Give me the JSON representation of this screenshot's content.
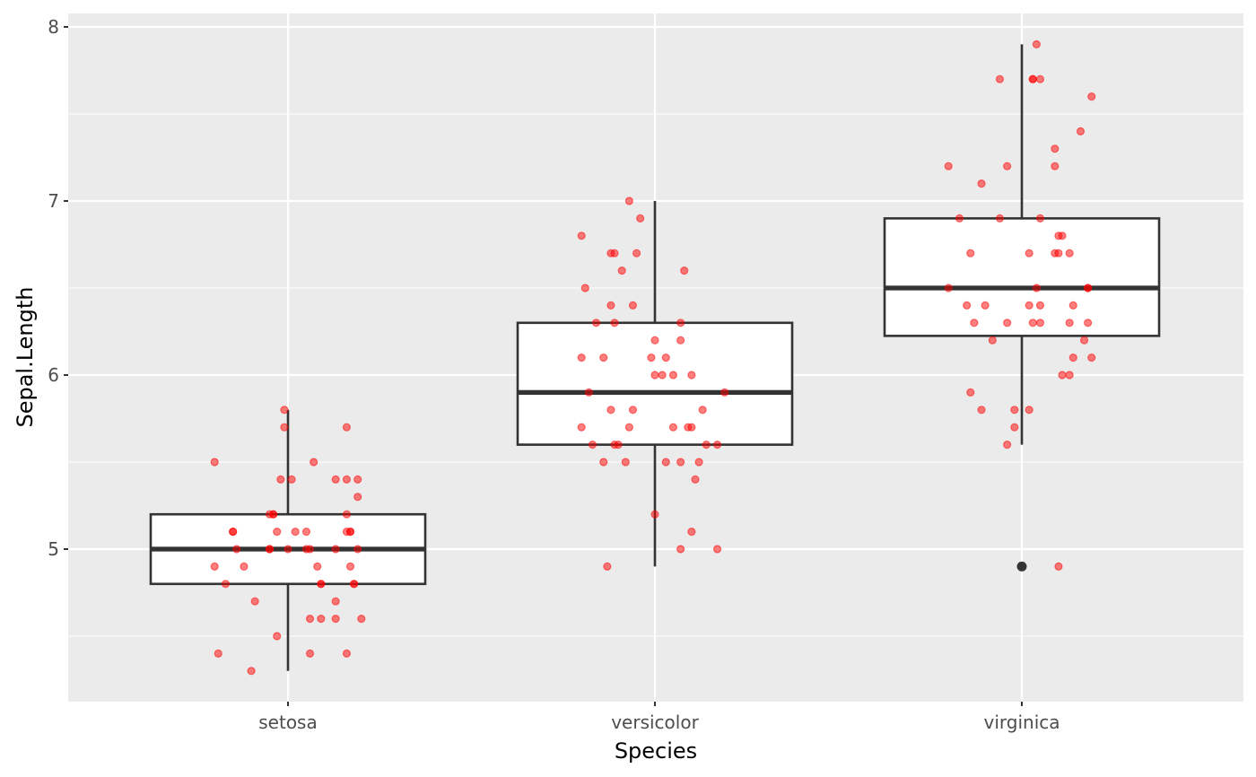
{
  "chart_data": {
    "type": "boxplot",
    "title": "",
    "xlabel": "Species",
    "ylabel": "Sepal.Length",
    "categories": [
      "setosa",
      "versicolor",
      "virginica"
    ],
    "ylim": [
      4.22,
      8.08
    ],
    "y_ticks": [
      5,
      6,
      7,
      8
    ],
    "y_tick_labels": [
      "5",
      "6",
      "7",
      "8"
    ],
    "y_minor_ticks": [
      4.5,
      5.5,
      6.5,
      7.5
    ],
    "grid": true,
    "legend": "none",
    "colors": {
      "panel": "#ebebeb",
      "grid": "#ffffff",
      "box_fill": "#ffffff",
      "box_line": "#333333",
      "points": "#ff0000",
      "outlier": "#333333"
    },
    "boxes": [
      {
        "category": "setosa",
        "lower_whisker": 4.3,
        "q1": 4.8,
        "median": 5.0,
        "q3": 5.2,
        "upper_whisker": 5.8,
        "outliers": []
      },
      {
        "category": "versicolor",
        "lower_whisker": 4.9,
        "q1": 5.6,
        "median": 5.9,
        "q3": 6.3,
        "upper_whisker": 7.0,
        "outliers": []
      },
      {
        "category": "virginica",
        "lower_whisker": 5.6,
        "q1": 6.225,
        "median": 6.5,
        "q3": 6.9,
        "upper_whisker": 7.9,
        "outliers": [
          4.9
        ]
      }
    ],
    "jitter_points": [
      {
        "category": "setosa",
        "points": [
          [
            -0.01,
            5.8
          ],
          [
            -0.01,
            5.7
          ],
          [
            0.16,
            5.7
          ],
          [
            -0.2,
            5.5
          ],
          [
            0.07,
            5.5
          ],
          [
            -0.02,
            5.4
          ],
          [
            0.01,
            5.4
          ],
          [
            0.13,
            5.4
          ],
          [
            0.16,
            5.4
          ],
          [
            0.19,
            5.4
          ],
          [
            0.19,
            5.3
          ],
          [
            -0.04,
            5.2
          ],
          [
            -0.05,
            5.2
          ],
          [
            -0.04,
            5.2
          ],
          [
            0.16,
            5.2
          ],
          [
            -0.15,
            5.1
          ],
          [
            -0.15,
            5.1
          ],
          [
            -0.03,
            5.1
          ],
          [
            0.02,
            5.1
          ],
          [
            0.05,
            5.1
          ],
          [
            0.16,
            5.1
          ],
          [
            0.17,
            5.1
          ],
          [
            0.17,
            5.1
          ],
          [
            -0.14,
            5.0
          ],
          [
            -0.05,
            5.0
          ],
          [
            -0.05,
            5.0
          ],
          [
            0.0,
            5.0
          ],
          [
            0.05,
            5.0
          ],
          [
            0.06,
            5.0
          ],
          [
            0.13,
            5.0
          ],
          [
            0.19,
            5.0
          ],
          [
            -0.2,
            4.9
          ],
          [
            -0.12,
            4.9
          ],
          [
            0.08,
            4.9
          ],
          [
            0.17,
            4.9
          ],
          [
            -0.17,
            4.8
          ],
          [
            0.09,
            4.8
          ],
          [
            0.09,
            4.8
          ],
          [
            0.18,
            4.8
          ],
          [
            0.18,
            4.8
          ],
          [
            -0.09,
            4.7
          ],
          [
            0.13,
            4.7
          ],
          [
            0.06,
            4.6
          ],
          [
            0.09,
            4.6
          ],
          [
            0.13,
            4.6
          ],
          [
            0.2,
            4.6
          ],
          [
            -0.03,
            4.5
          ],
          [
            -0.19,
            4.4
          ],
          [
            0.06,
            4.4
          ],
          [
            0.16,
            4.4
          ],
          [
            -0.1,
            4.3
          ]
        ]
      },
      {
        "category": "versicolor",
        "points": [
          [
            -0.07,
            7.0
          ],
          [
            -0.04,
            6.9
          ],
          [
            -0.2,
            6.8
          ],
          [
            -0.12,
            6.7
          ],
          [
            -0.11,
            6.7
          ],
          [
            -0.05,
            6.7
          ],
          [
            -0.09,
            6.6
          ],
          [
            0.08,
            6.6
          ],
          [
            -0.19,
            6.5
          ],
          [
            -0.12,
            6.4
          ],
          [
            -0.06,
            6.4
          ],
          [
            -0.16,
            6.3
          ],
          [
            -0.11,
            6.3
          ],
          [
            0.07,
            6.3
          ],
          [
            0.0,
            6.2
          ],
          [
            0.07,
            6.2
          ],
          [
            -0.2,
            6.1
          ],
          [
            -0.14,
            6.1
          ],
          [
            -0.01,
            6.1
          ],
          [
            0.03,
            6.1
          ],
          [
            0.0,
            6.0
          ],
          [
            0.02,
            6.0
          ],
          [
            0.05,
            6.0
          ],
          [
            0.1,
            6.0
          ],
          [
            -0.18,
            5.9
          ],
          [
            0.19,
            5.9
          ],
          [
            -0.12,
            5.8
          ],
          [
            -0.06,
            5.8
          ],
          [
            0.13,
            5.8
          ],
          [
            -0.2,
            5.7
          ],
          [
            -0.07,
            5.7
          ],
          [
            0.05,
            5.7
          ],
          [
            0.09,
            5.7
          ],
          [
            0.1,
            5.7
          ],
          [
            -0.17,
            5.6
          ],
          [
            -0.11,
            5.6
          ],
          [
            -0.1,
            5.6
          ],
          [
            0.14,
            5.6
          ],
          [
            0.17,
            5.6
          ],
          [
            -0.14,
            5.5
          ],
          [
            -0.08,
            5.5
          ],
          [
            0.03,
            5.5
          ],
          [
            0.07,
            5.5
          ],
          [
            0.12,
            5.5
          ],
          [
            0.11,
            5.4
          ],
          [
            0.0,
            5.2
          ],
          [
            0.1,
            5.1
          ],
          [
            0.07,
            5.0
          ],
          [
            0.17,
            5.0
          ],
          [
            -0.13,
            4.9
          ]
        ]
      },
      {
        "category": "virginica",
        "points": [
          [
            0.04,
            7.9
          ],
          [
            -0.06,
            7.7
          ],
          [
            0.03,
            7.7
          ],
          [
            0.03,
            7.7
          ],
          [
            0.05,
            7.7
          ],
          [
            0.19,
            7.6
          ],
          [
            0.16,
            7.4
          ],
          [
            0.09,
            7.3
          ],
          [
            -0.2,
            7.2
          ],
          [
            -0.04,
            7.2
          ],
          [
            0.09,
            7.2
          ],
          [
            -0.11,
            7.1
          ],
          [
            -0.17,
            6.9
          ],
          [
            -0.06,
            6.9
          ],
          [
            0.05,
            6.9
          ],
          [
            0.1,
            6.8
          ],
          [
            0.11,
            6.8
          ],
          [
            -0.14,
            6.7
          ],
          [
            0.02,
            6.7
          ],
          [
            0.09,
            6.7
          ],
          [
            0.1,
            6.7
          ],
          [
            0.13,
            6.7
          ],
          [
            -0.2,
            6.5
          ],
          [
            0.04,
            6.5
          ],
          [
            0.18,
            6.5
          ],
          [
            0.18,
            6.5
          ],
          [
            -0.15,
            6.4
          ],
          [
            -0.1,
            6.4
          ],
          [
            0.02,
            6.4
          ],
          [
            0.05,
            6.4
          ],
          [
            0.14,
            6.4
          ],
          [
            -0.13,
            6.3
          ],
          [
            -0.04,
            6.3
          ],
          [
            0.03,
            6.3
          ],
          [
            0.05,
            6.3
          ],
          [
            0.13,
            6.3
          ],
          [
            0.18,
            6.3
          ],
          [
            -0.08,
            6.2
          ],
          [
            0.17,
            6.2
          ],
          [
            0.14,
            6.1
          ],
          [
            0.19,
            6.1
          ],
          [
            0.11,
            6.0
          ],
          [
            0.13,
            6.0
          ],
          [
            -0.14,
            5.9
          ],
          [
            -0.11,
            5.8
          ],
          [
            -0.02,
            5.8
          ],
          [
            0.02,
            5.8
          ],
          [
            -0.02,
            5.7
          ],
          [
            -0.04,
            5.6
          ],
          [
            0.1,
            4.9
          ]
        ]
      }
    ]
  }
}
